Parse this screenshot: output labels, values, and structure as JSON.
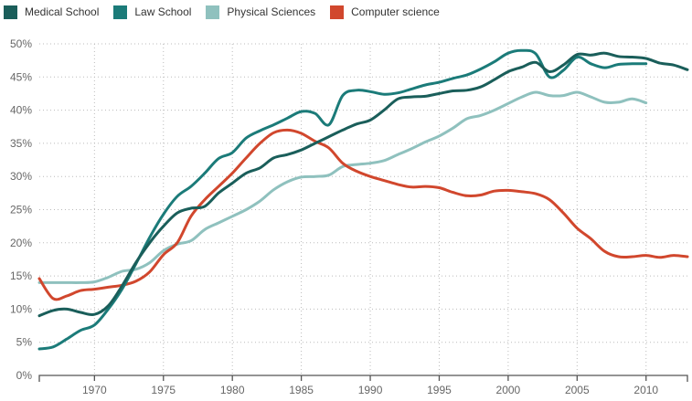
{
  "chart_data": {
    "type": "line",
    "title": "",
    "xlabel": "",
    "ylabel": "",
    "xlim": [
      1966,
      2013
    ],
    "ylim": [
      0,
      50
    ],
    "grid": true,
    "legend_position": "top-left",
    "x_ticks": [
      1970,
      1975,
      1980,
      1985,
      1990,
      1995,
      2000,
      2005,
      2010
    ],
    "x_tick_labels": [
      "1970",
      "1975",
      "1980",
      "1985",
      "1990",
      "1995",
      "2000",
      "2005",
      "2010"
    ],
    "y_ticks": [
      0,
      5,
      10,
      15,
      20,
      25,
      30,
      35,
      40,
      45,
      50
    ],
    "y_tick_labels": [
      "0%",
      "5%",
      "10%",
      "15%",
      "20%",
      "25%",
      "30%",
      "35%",
      "40%",
      "45%",
      "50%"
    ],
    "series": [
      {
        "name": "Medical School",
        "color": "#1a5e5a",
        "x": [
          1966,
          1967,
          1968,
          1969,
          1970,
          1971,
          1972,
          1973,
          1974,
          1975,
          1976,
          1977,
          1978,
          1979,
          1980,
          1981,
          1982,
          1983,
          1984,
          1985,
          1986,
          1987,
          1988,
          1989,
          1990,
          1991,
          1992,
          1993,
          1994,
          1995,
          1996,
          1997,
          1998,
          1999,
          2000,
          2001,
          2002,
          2003,
          2004,
          2005,
          2006,
          2007,
          2008,
          2009,
          2010,
          2011,
          2012,
          2013
        ],
        "values": [
          9.0,
          9.8,
          10.0,
          9.5,
          9.2,
          10.5,
          13.5,
          17.0,
          20.0,
          22.5,
          24.5,
          25.2,
          25.5,
          27.5,
          29.0,
          30.5,
          31.3,
          32.8,
          33.3,
          34.0,
          35.0,
          36.0,
          37.0,
          37.9,
          38.5,
          40.0,
          41.7,
          42.0,
          42.1,
          42.5,
          42.9,
          43.0,
          43.5,
          44.6,
          45.8,
          46.5,
          47.2,
          45.8,
          46.8,
          48.4,
          48.3,
          48.6,
          48.1,
          48.0,
          47.8,
          47.1,
          46.8,
          46.1
        ]
      },
      {
        "name": "Law School",
        "color": "#1b7b79",
        "x": [
          1966,
          1967,
          1968,
          1969,
          1970,
          1971,
          1972,
          1973,
          1974,
          1975,
          1976,
          1977,
          1978,
          1979,
          1980,
          1981,
          1982,
          1983,
          1984,
          1985,
          1986,
          1987,
          1988,
          1989,
          1990,
          1991,
          1992,
          1993,
          1994,
          1995,
          1996,
          1997,
          1998,
          1999,
          2000,
          2001,
          2002,
          2003,
          2004,
          2005,
          2006,
          2007,
          2008,
          2009,
          2010
        ],
        "values": [
          4.0,
          4.3,
          5.5,
          6.8,
          7.6,
          10.0,
          13.0,
          16.8,
          20.8,
          24.3,
          27.0,
          28.5,
          30.5,
          32.7,
          33.6,
          35.8,
          36.9,
          37.8,
          38.8,
          39.8,
          39.5,
          37.8,
          42.2,
          43.0,
          42.8,
          42.4,
          42.6,
          43.2,
          43.8,
          44.2,
          44.8,
          45.3,
          46.2,
          47.3,
          48.6,
          49.0,
          48.5,
          45.0,
          46.0,
          48.0,
          47.0,
          46.4,
          46.9,
          47.0,
          47.0
        ]
      },
      {
        "name": "Physical Sciences",
        "color": "#8fc1be",
        "x": [
          1966,
          1967,
          1968,
          1969,
          1970,
          1971,
          1972,
          1973,
          1974,
          1975,
          1976,
          1977,
          1978,
          1979,
          1980,
          1981,
          1982,
          1983,
          1984,
          1985,
          1986,
          1987,
          1988,
          1989,
          1990,
          1991,
          1992,
          1993,
          1994,
          1995,
          1996,
          1997,
          1998,
          1999,
          2000,
          2001,
          2002,
          2003,
          2004,
          2005,
          2006,
          2007,
          2008,
          2009,
          2010
        ],
        "values": [
          14.0,
          14.0,
          14.0,
          14.0,
          14.1,
          14.8,
          15.7,
          16.0,
          17.0,
          18.8,
          19.8,
          20.3,
          22.0,
          23.0,
          24.0,
          25.0,
          26.3,
          28.0,
          29.2,
          29.9,
          30.0,
          30.2,
          31.5,
          31.8,
          32.0,
          32.4,
          33.3,
          34.2,
          35.2,
          36.1,
          37.3,
          38.7,
          39.2,
          40.0,
          41.0,
          42.0,
          42.7,
          42.2,
          42.2,
          42.7,
          42.0,
          41.2,
          41.2,
          41.7,
          41.1
        ]
      },
      {
        "name": "Computer science",
        "color": "#d1472d",
        "x": [
          1966,
          1967,
          1968,
          1969,
          1970,
          1971,
          1972,
          1973,
          1974,
          1975,
          1976,
          1977,
          1978,
          1979,
          1980,
          1981,
          1982,
          1983,
          1984,
          1985,
          1986,
          1987,
          1988,
          1989,
          1990,
          1991,
          1992,
          1993,
          1994,
          1995,
          1996,
          1997,
          1998,
          1999,
          2000,
          2001,
          2002,
          2003,
          2004,
          2005,
          2006,
          2007,
          2008,
          2009,
          2010,
          2011,
          2012,
          2013
        ],
        "values": [
          14.6,
          11.6,
          12.0,
          12.8,
          13.0,
          13.3,
          13.6,
          14.2,
          15.6,
          18.2,
          20.0,
          24.0,
          26.5,
          28.5,
          30.5,
          32.8,
          35.0,
          36.6,
          37.0,
          36.5,
          35.3,
          34.3,
          32.0,
          30.8,
          30.0,
          29.4,
          28.8,
          28.4,
          28.5,
          28.3,
          27.6,
          27.1,
          27.2,
          27.8,
          27.9,
          27.7,
          27.4,
          26.5,
          24.5,
          22.2,
          20.6,
          18.7,
          17.9,
          17.9,
          18.1,
          17.8,
          18.1,
          17.9
        ]
      }
    ]
  }
}
